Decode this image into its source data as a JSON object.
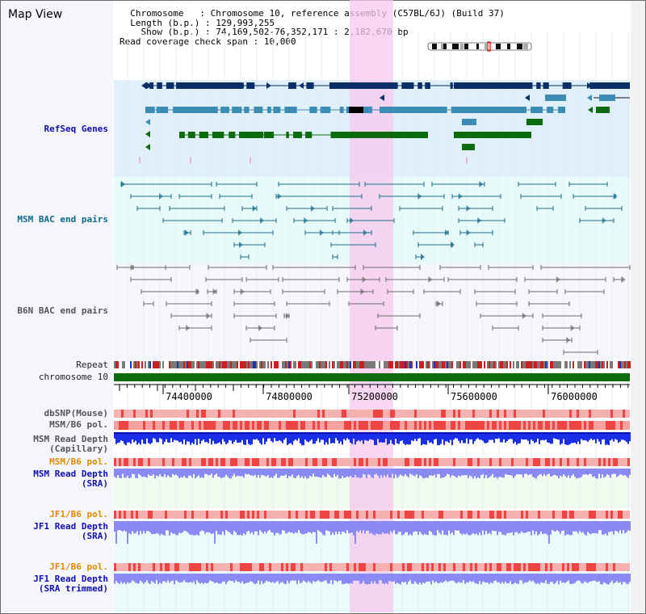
{
  "title": "Map View",
  "info": {
    "chromosome_key": "Chromosome",
    "chromosome_val": "Chromosome 10, reference assembly (C57BL/6J) (Build 37)",
    "length_key": "Length (b.p.)",
    "length_val": "129,993,255",
    "show_key": "Show (b.p.)",
    "show_val": "74,169,502-76,352,171 : 2,182,670 bp",
    "coverage_key": "Read coverage check span",
    "coverage_val": "10,000"
  },
  "tracks": {
    "refseq": "RefSeq Genes",
    "msm_bac": "MSM BAC end pairs",
    "b6n_bac": "B6N BAC end pairs",
    "repeat": "Repeat",
    "chromosome": "chromosome 10",
    "dbsnp": "dbSNP(Mouse)",
    "msm_b6_pol": "MSM/B6 pol.",
    "msm_depth_cap_1": "MSM Read Depth",
    "msm_depth_cap_2": "(Capillary)",
    "msm_b6_pol_2": "MSM/B6 pol.",
    "msm_depth_sra_1": "MSM Read Depth",
    "msm_depth_sra_2": "(SRA)",
    "jf1_b6_pol": "JF1/B6 pol.",
    "jf1_depth_sra_1": "JF1 Read Depth",
    "jf1_depth_sra_2": "(SRA)",
    "jf1_b6_pol_2": "JF1/B6 pol.",
    "jf1_depth_trim_1": "JF1 Read Depth",
    "jf1_depth_trim_2": "(SRA trimmed)"
  },
  "axis": {
    "ticks": [
      "74400000",
      "74800000",
      "75200000",
      "75600000",
      "76000000"
    ]
  },
  "colors": {
    "refseq_bg": "#dff0fa",
    "msm_bg": "#e8fbfb",
    "b6n_bg": "#f7f7fb",
    "highlight": "#f7c8ee",
    "dark_gene": "#0a2f66",
    "mid_gene": "#3d8cb3",
    "green_gene": "#0d6b0d",
    "chromosome_bar": "#0e6b0e",
    "depth_blue": "#1a2ee8",
    "depth_light": "#8a8af5",
    "pol_red": "#ee4444",
    "pol_pink": "#f7b0b0"
  }
}
